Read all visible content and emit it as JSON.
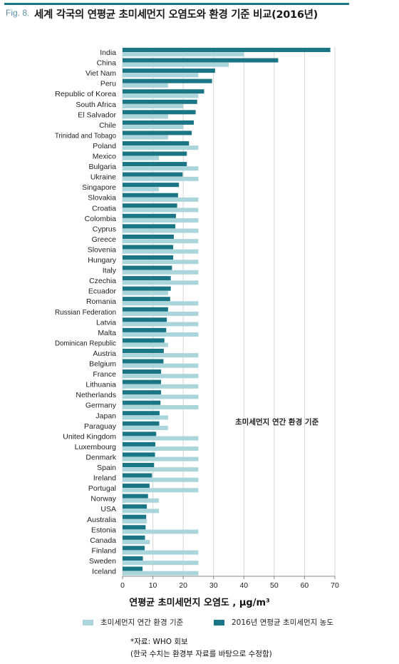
{
  "header": {
    "fig_label": "Fig. 8.",
    "title": "세계 각국의 연평균 초미세먼지 오염도와 환경 기준 비교(2016년)"
  },
  "colors": {
    "accent_line": "#1a7584",
    "standard": "#a9d5db",
    "concentration": "#1a7584",
    "grid": "#d4d4d4"
  },
  "annotation": "초미세먼지 연간 환경 기준",
  "source": {
    "line1": "*자료: WHO 회보",
    "line2": "(한국 수치는 환경부 자료를 바탕으로 수정함)"
  },
  "chart_data": {
    "type": "bar",
    "orientation": "horizontal",
    "title": "세계 각국의 연평균 초미세먼지 오염도와 환경 기준 비교(2016년)",
    "xlabel": "연평균 초미세먼지 오염도 , μg/m³",
    "xlim": [
      0,
      70
    ],
    "xticks": [
      0,
      10,
      20,
      30,
      40,
      50,
      60,
      70
    ],
    "grid": true,
    "legend_position": "bottom",
    "categories": [
      "India",
      "China",
      "Viet Nam",
      "Peru",
      "Republic of Korea",
      "South Africa",
      "El Salvador",
      "Chile",
      "Trinidad and Tobago",
      "Poland",
      "Mexico",
      "Bulgaria",
      "Ukraine",
      "Singapore",
      "Slovakia",
      "Croatia",
      "Colombia",
      "Cyprus",
      "Greece",
      "Slovenia",
      "Hungary",
      "Italy",
      "Czechia",
      "Ecuador",
      "Romania",
      "Russian Federation",
      "Latvia",
      "Malta",
      "Dominican Republic",
      "Austria",
      "Belgium",
      "France",
      "Lithuania",
      "Netherlands",
      "Germany",
      "Japan",
      "Paraguay",
      "United Kingdom",
      "Luxembourg",
      "Denmark",
      "Spain",
      "Ireland",
      "Portugal",
      "Norway",
      "USA",
      "Australia",
      "Estonia",
      "Canada",
      "Finland",
      "Sweden",
      "Iceland"
    ],
    "series": [
      {
        "name": "초미세먼지 연간 환경 기준",
        "values": [
          40,
          35,
          25,
          15,
          25,
          20,
          15,
          20,
          15,
          25,
          12,
          25,
          25,
          12,
          25,
          25,
          25,
          25,
          25,
          25,
          25,
          25,
          25,
          15,
          25,
          25,
          25,
          25,
          15,
          25,
          25,
          25,
          25,
          25,
          25,
          15,
          15,
          25,
          25,
          25,
          25,
          25,
          25,
          12,
          12,
          8,
          25,
          9,
          25,
          25,
          25
        ]
      },
      {
        "name": "2016년 연평균 초미세먼지 농도",
        "values": [
          68.5,
          51.3,
          30.5,
          29.5,
          26.9,
          24.6,
          24.1,
          23.5,
          22.8,
          21.9,
          21.2,
          21.2,
          19.8,
          18.6,
          18.3,
          18.0,
          17.6,
          17.4,
          16.9,
          16.7,
          16.7,
          16.3,
          15.9,
          15.9,
          15.7,
          15.0,
          14.6,
          14.4,
          13.8,
          13.6,
          13.5,
          12.7,
          12.7,
          12.7,
          12.5,
          12.2,
          12.1,
          11.1,
          10.8,
          10.7,
          10.4,
          9.7,
          8.9,
          8.4,
          8.0,
          7.8,
          7.6,
          7.4,
          7.3,
          6.7,
          6.6
        ]
      }
    ]
  }
}
